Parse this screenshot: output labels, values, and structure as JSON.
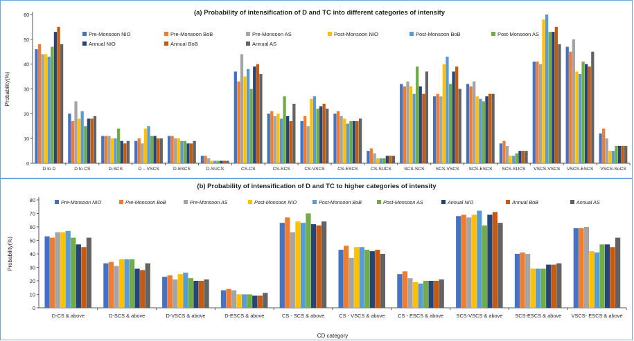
{
  "chart_data": [
    {
      "type": "bar",
      "title": "(a) Probability of intensification of D and TC into different categories of intensity",
      "xlabel": "",
      "ylabel": "Probability(%)",
      "ylim": [
        0,
        60
      ],
      "yticks": [
        0,
        10,
        20,
        30,
        40,
        50,
        60
      ],
      "grid": false,
      "legend": "top-center",
      "categories": [
        "D to D",
        "D to CS",
        "D-SCS",
        "D – VSCS",
        "D-ESCS",
        "D-SUCS",
        "CS-CS",
        "CS-SCS",
        "CS-VSCS",
        "CS-ESCS",
        "CS-SUCS",
        "SCS-SCS",
        "SCS-VSCS",
        "SCS-ESCS",
        "SCS-SUCS",
        "VSCS-VSCS",
        "VSCS-ESCS",
        "VSCS-SuCS"
      ],
      "series": [
        {
          "name": "Pre-Monsoon NIO",
          "color": "#4472c4",
          "values": [
            46,
            20,
            11,
            9,
            11,
            3,
            37,
            20,
            17,
            20,
            5,
            32,
            27,
            32,
            8,
            41,
            47,
            12
          ]
        },
        {
          "name": "Pre-Monsoon BoB",
          "color": "#ed7d31",
          "values": [
            48,
            17,
            11,
            10,
            11,
            3,
            33,
            21,
            19,
            21,
            6,
            31,
            28,
            31,
            9,
            41,
            45,
            14
          ]
        },
        {
          "name": "Pre-Monsoon AS",
          "color": "#a5a5a5",
          "values": [
            44,
            25,
            11,
            8,
            10,
            2,
            44,
            19,
            15,
            19,
            4,
            33,
            27,
            33,
            7,
            40,
            50,
            10
          ]
        },
        {
          "name": "Post-Monsoon NIO",
          "color": "#ffc000",
          "values": [
            44,
            18,
            10,
            14,
            10,
            1,
            35,
            20,
            26,
            18,
            2,
            31,
            40,
            27,
            3,
            58,
            37,
            5
          ]
        },
        {
          "name": "Post-Monsoon BoB",
          "color": "#5b9bd5",
          "values": [
            43,
            21,
            10,
            15,
            9,
            1,
            38,
            18,
            27,
            16,
            2,
            28,
            43,
            26,
            3,
            60,
            36,
            5
          ]
        },
        {
          "name": "Post-Monsoon AS",
          "color": "#70ad47",
          "values": [
            47,
            15,
            14,
            11,
            9,
            1,
            30,
            27,
            22,
            17,
            2,
            39,
            32,
            25,
            4,
            53,
            41,
            7
          ]
        },
        {
          "name": "Annual NIO",
          "color": "#264478",
          "values": [
            53,
            18,
            9,
            11,
            8,
            1,
            39,
            19,
            23,
            17,
            3,
            31,
            37,
            27,
            5,
            53,
            40,
            7
          ]
        },
        {
          "name": "Annual BoB",
          "color": "#c55a11",
          "values": [
            55,
            18,
            8,
            10,
            8,
            1,
            40,
            17,
            24,
            17,
            3,
            28,
            39,
            28,
            5,
            55,
            39,
            7
          ]
        },
        {
          "name": "Annual AS",
          "color": "#636363",
          "values": [
            48,
            19,
            9,
            10,
            9,
            1,
            36,
            24,
            22,
            18,
            3,
            37,
            30,
            28,
            5,
            48,
            45,
            7
          ]
        }
      ]
    },
    {
      "type": "bar",
      "title": "(b) Probability of intensification of D and TC to higher categories of intensity",
      "xlabel": "CD category",
      "ylabel": "Probability(%)",
      "ylim": [
        0,
        80
      ],
      "yticks": [
        0,
        10,
        20,
        30,
        40,
        50,
        60,
        70,
        80
      ],
      "grid": false,
      "legend": "top",
      "categories": [
        "D-CS & above",
        "D-SCS & above",
        "D-VSCS & above",
        "D-ESCS & above",
        "CS - SCS & above",
        "CS - VSCS & above",
        "CS - ESCS & above",
        "SCS-VSCS & above",
        "SCS-ESCS & above",
        "VSCS- ESCS & above"
      ],
      "series": [
        {
          "name": "Pre-Monsoon NIO",
          "color": "#4472c4",
          "values": [
            53,
            33,
            23,
            13,
            63,
            43,
            25,
            68,
            40,
            59
          ]
        },
        {
          "name": "Pre-Monsoon BoB",
          "color": "#ed7d31",
          "values": [
            52,
            34,
            24,
            14,
            67,
            46,
            27,
            69,
            41,
            59
          ]
        },
        {
          "name": "Pre-Monsoon AS",
          "color": "#a5a5a5",
          "values": [
            56,
            31,
            21,
            13,
            56,
            37,
            22,
            67,
            40,
            60
          ]
        },
        {
          "name": "Post-Monsoon NIO",
          "color": "#ffc000",
          "values": [
            56,
            36,
            25,
            10,
            64,
            45,
            19,
            69,
            29,
            42
          ]
        },
        {
          "name": "Post-Monsoon BoB",
          "color": "#5b9bd5",
          "values": [
            57,
            36,
            26,
            10,
            63,
            45,
            18,
            72,
            29,
            41
          ]
        },
        {
          "name": "Post-Monsoon AS",
          "color": "#70ad47",
          "values": [
            52,
            36,
            22,
            10,
            70,
            43,
            20,
            61,
            29,
            47
          ]
        },
        {
          "name": "Annual NIO",
          "color": "#264478",
          "values": [
            47,
            29,
            20,
            9,
            62,
            42,
            20,
            69,
            32,
            47
          ]
        },
        {
          "name": "Annual BoB",
          "color": "#c55a11",
          "values": [
            45,
            28,
            20,
            9,
            61,
            43,
            20,
            71,
            32,
            45
          ]
        },
        {
          "name": "Annual AS",
          "color": "#636363",
          "values": [
            52,
            33,
            21,
            11,
            64,
            40,
            21,
            63,
            33,
            52
          ]
        }
      ]
    }
  ]
}
